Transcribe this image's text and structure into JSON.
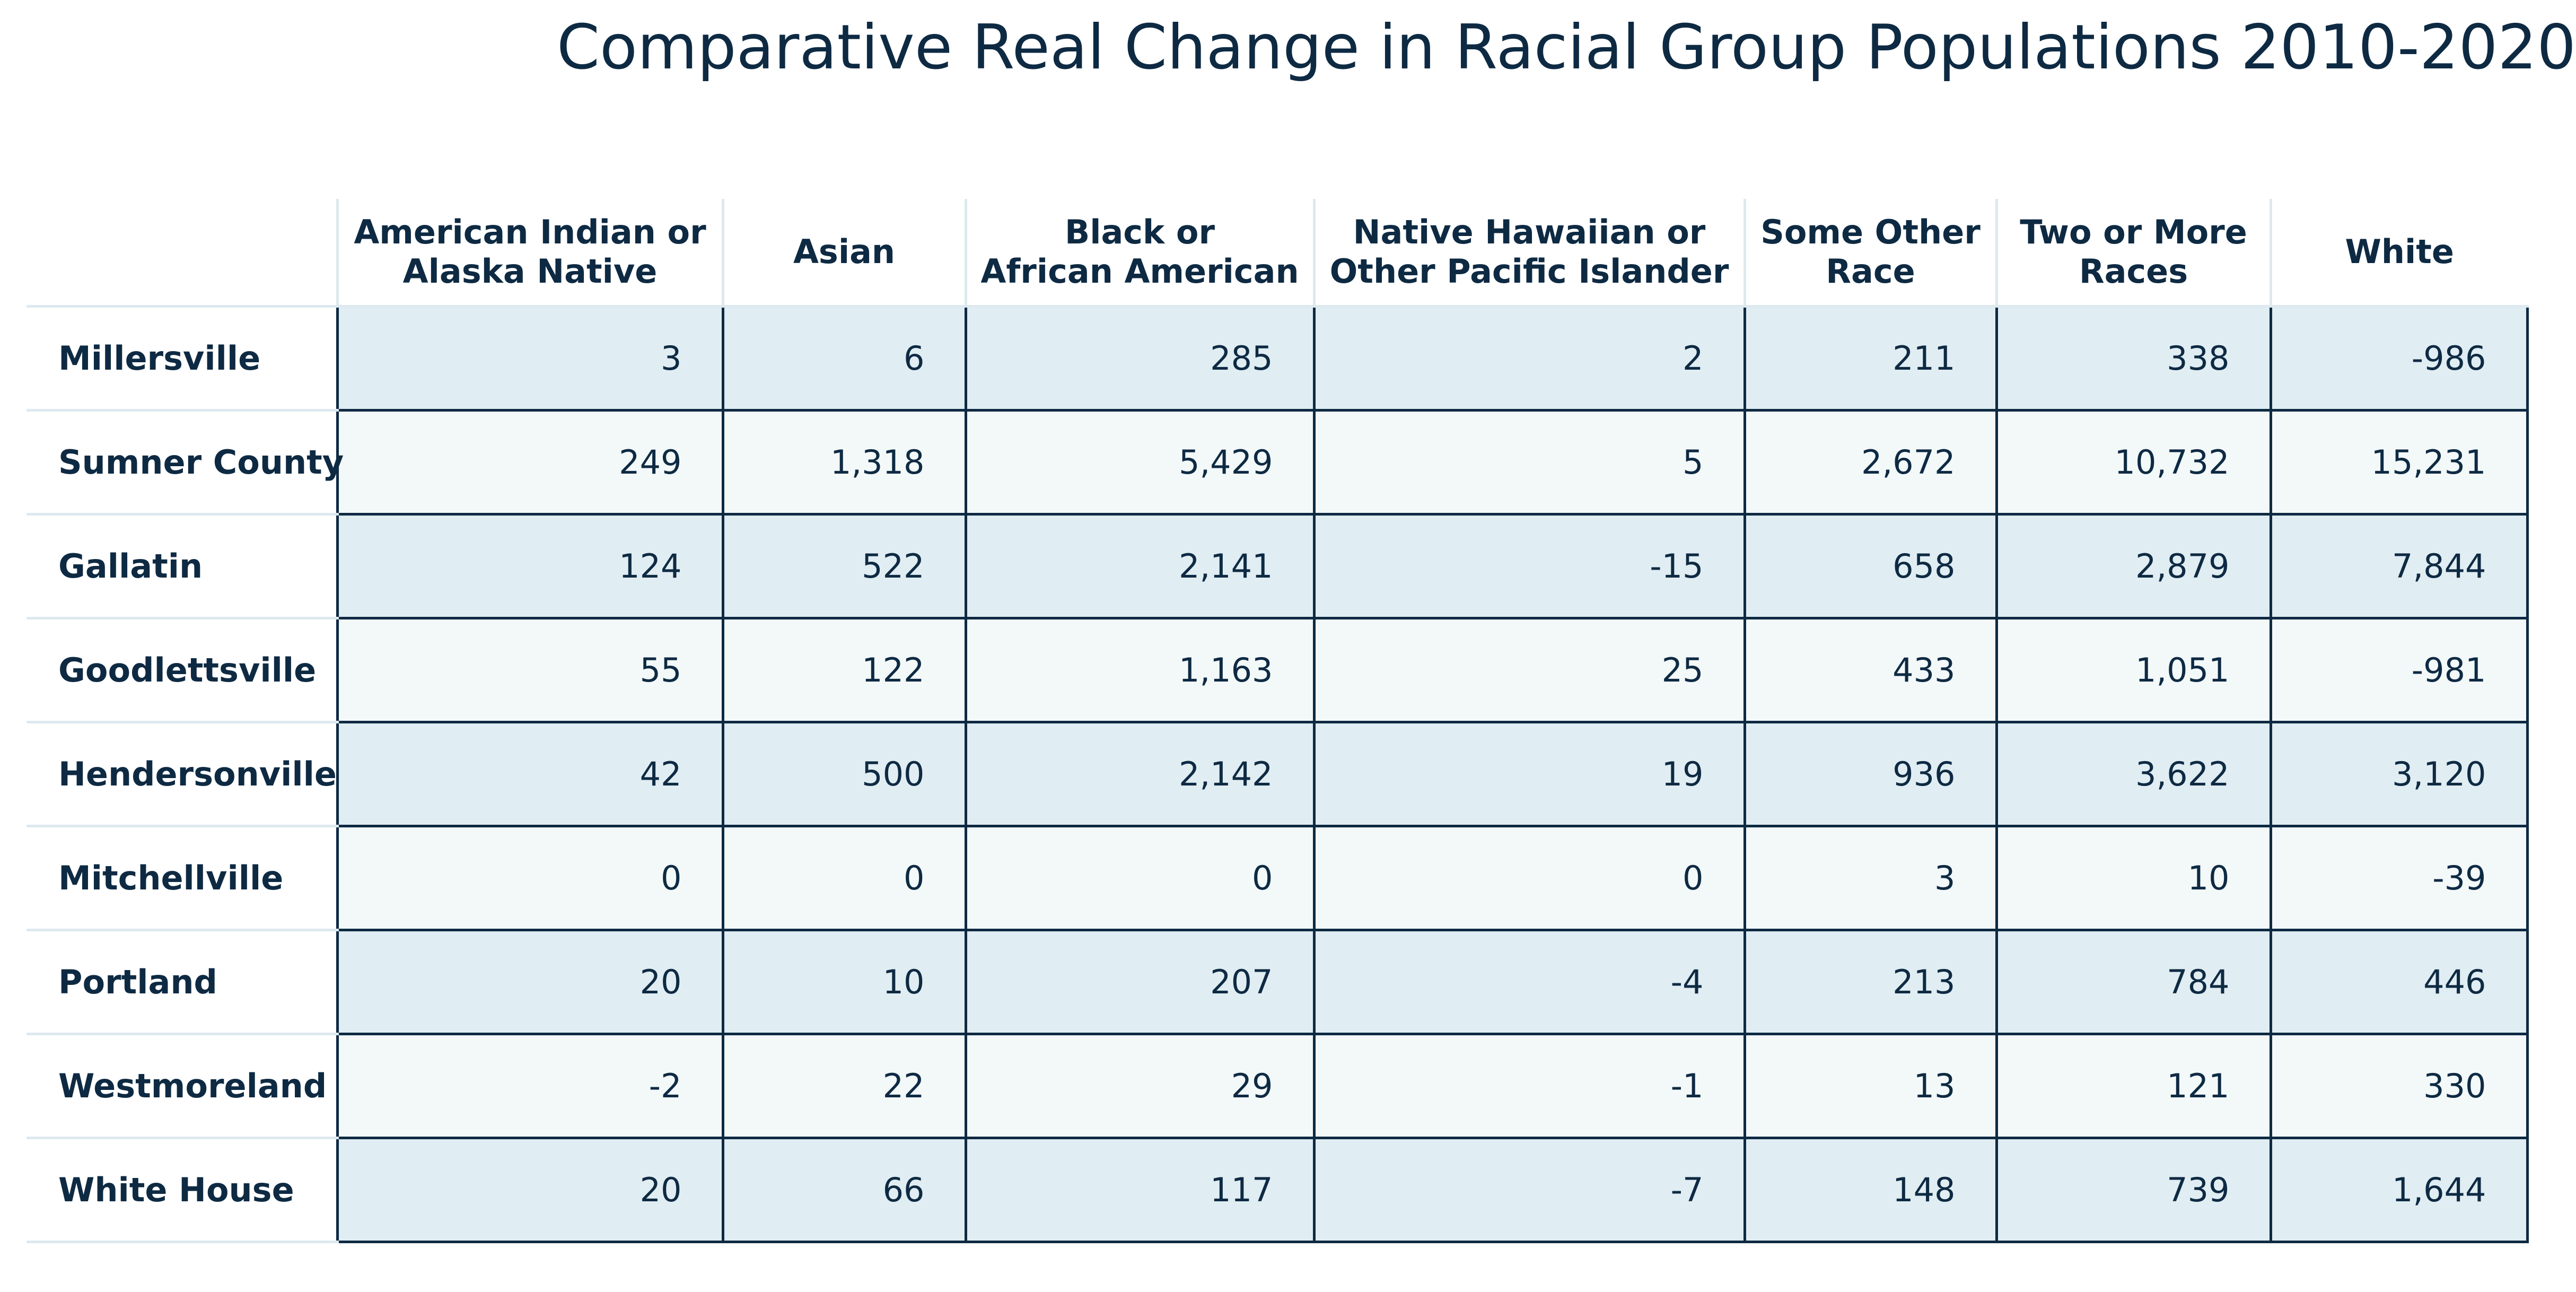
{
  "chart_data": {
    "type": "table",
    "title": "Comparative Real Change in Racial Group Populations 2010-2020",
    "columns": [
      "American Indian or\nAlaska Native",
      "Asian",
      "Black or\nAfrican American",
      "Native Hawaiian or\nOther Pacific Islander",
      "Some Other\nRace",
      "Two or More\nRaces",
      "White"
    ],
    "rows": [
      {
        "label": "Millersville",
        "values": [
          "3",
          "6",
          "285",
          "2",
          "211",
          "338",
          "-986"
        ]
      },
      {
        "label": "Sumner County",
        "values": [
          "249",
          "1,318",
          "5,429",
          "5",
          "2,672",
          "10,732",
          "15,231"
        ]
      },
      {
        "label": "Gallatin",
        "values": [
          "124",
          "522",
          "2,141",
          "-15",
          "658",
          "2,879",
          "7,844"
        ]
      },
      {
        "label": "Goodlettsville",
        "values": [
          "55",
          "122",
          "1,163",
          "25",
          "433",
          "1,051",
          "-981"
        ]
      },
      {
        "label": "Hendersonville",
        "values": [
          "42",
          "500",
          "2,142",
          "19",
          "936",
          "3,622",
          "3,120"
        ]
      },
      {
        "label": "Mitchellville",
        "values": [
          "0",
          "0",
          "0",
          "0",
          "3",
          "10",
          "-39"
        ]
      },
      {
        "label": "Portland",
        "values": [
          "20",
          "10",
          "207",
          "-4",
          "213",
          "784",
          "446"
        ]
      },
      {
        "label": "Westmoreland",
        "values": [
          "-2",
          "22",
          "29",
          "-1",
          "13",
          "121",
          "330"
        ]
      },
      {
        "label": "White House",
        "values": [
          "20",
          "66",
          "117",
          "-7",
          "148",
          "739",
          "1,644"
        ]
      }
    ]
  },
  "colors": {
    "text": "#0e2a43",
    "row_shade_dark": "#e0edf2",
    "row_shade_light": "#f3f8f9",
    "header_rule": "#dde9ef",
    "cell_border": "#0e2a43"
  }
}
